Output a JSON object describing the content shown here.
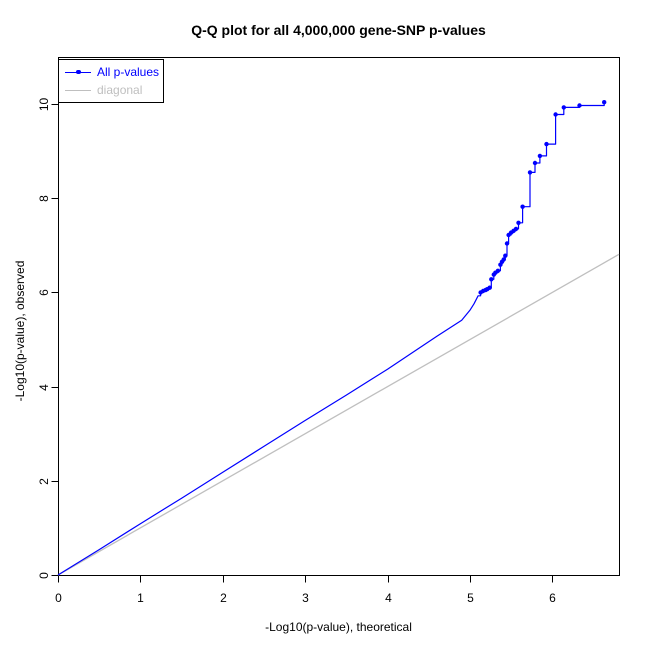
{
  "chart_data": {
    "type": "line",
    "title": "Q-Q plot for all 4,000,000 gene-SNP p-values",
    "xlabel": "-Log10(p-value), theoretical",
    "ylabel": "-Log10(p-value), observed",
    "xlim": [
      0,
      6.81
    ],
    "ylim": [
      0,
      11
    ],
    "x_ticks": [
      0,
      1,
      2,
      3,
      4,
      5,
      6
    ],
    "y_ticks": [
      0,
      2,
      4,
      6,
      8,
      10
    ],
    "grid": false,
    "background_color": "#FFFFFF",
    "axis_color": "#000000",
    "legend": {
      "position": "topleft",
      "entries": [
        {
          "label": "All p-values",
          "color": "#0000FF",
          "marker": true
        },
        {
          "label": "diagonal",
          "color": "#BFBFBF",
          "marker": false
        }
      ]
    },
    "series": [
      {
        "name": "All p-values",
        "color": "#0000FF",
        "style": "line-with-step-tail-and-markers",
        "line_points": [
          [
            0,
            0
          ],
          [
            0.5,
            0.54
          ],
          [
            1,
            1.09
          ],
          [
            1.5,
            1.63
          ],
          [
            2,
            2.18
          ],
          [
            2.5,
            2.73
          ],
          [
            3,
            3.28
          ],
          [
            3.5,
            3.82
          ],
          [
            4,
            4.37
          ],
          [
            4.3,
            4.72
          ],
          [
            4.6,
            5.07
          ],
          [
            4.9,
            5.41
          ],
          [
            5.0,
            5.62
          ],
          [
            5.05,
            5.76
          ],
          [
            5.1,
            5.93
          ]
        ],
        "tail_points": [
          [
            5.13,
            6.0
          ],
          [
            5.16,
            6.03
          ],
          [
            5.19,
            6.05
          ],
          [
            5.21,
            6.07
          ],
          [
            5.24,
            6.1
          ],
          [
            5.26,
            6.28
          ],
          [
            5.29,
            6.38
          ],
          [
            5.31,
            6.42
          ],
          [
            5.34,
            6.46
          ],
          [
            5.37,
            6.59
          ],
          [
            5.39,
            6.65
          ],
          [
            5.41,
            6.7
          ],
          [
            5.43,
            6.78
          ],
          [
            5.45,
            7.04
          ],
          [
            5.47,
            7.22
          ],
          [
            5.5,
            7.27
          ],
          [
            5.53,
            7.31
          ],
          [
            5.56,
            7.35
          ],
          [
            5.59,
            7.48
          ],
          [
            5.64,
            7.82
          ],
          [
            5.73,
            8.55
          ],
          [
            5.79,
            8.75
          ],
          [
            5.85,
            8.9
          ],
          [
            5.93,
            9.15
          ],
          [
            6.04,
            9.78
          ],
          [
            6.14,
            9.93
          ],
          [
            6.33,
            9.97
          ],
          [
            6.63,
            10.04
          ]
        ]
      },
      {
        "name": "diagonal",
        "color": "#BFBFBF",
        "style": "line",
        "points": [
          [
            0,
            0
          ],
          [
            6.81,
            6.81
          ]
        ]
      }
    ]
  }
}
